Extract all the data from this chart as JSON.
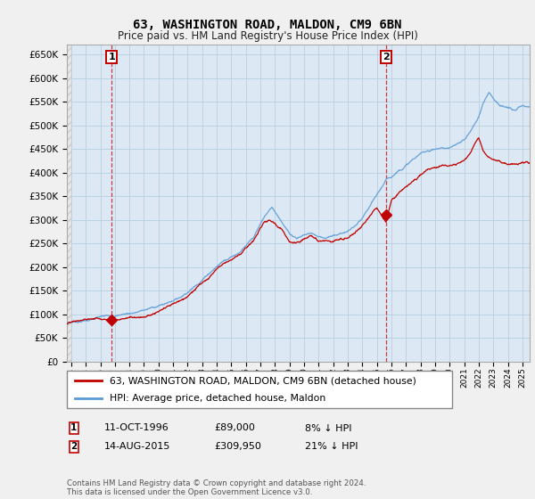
{
  "title": "63, WASHINGTON ROAD, MALDON, CM9 6BN",
  "subtitle": "Price paid vs. HM Land Registry's House Price Index (HPI)",
  "ylim": [
    0,
    670000
  ],
  "yticks": [
    0,
    50000,
    100000,
    150000,
    200000,
    250000,
    300000,
    350000,
    400000,
    450000,
    500000,
    550000,
    600000,
    650000
  ],
  "xlim_start": 1993.7,
  "xlim_end": 2025.5,
  "background_color": "#f0f0f0",
  "plot_bg_color": "#dce9f5",
  "grid_color": "#b8cfe0",
  "hpi_color": "#5b9bd5",
  "price_color": "#c00000",
  "sale1_price": 89000,
  "sale1_hpi_pct": "8% ↓ HPI",
  "sale1_date_label": "11-OCT-1996",
  "sale1_x": 1996.78,
  "sale2_price": 309950,
  "sale2_hpi_pct": "21% ↓ HPI",
  "sale2_date_label": "14-AUG-2015",
  "sale2_x": 2015.62,
  "legend_line1": "63, WASHINGTON ROAD, MALDON, CM9 6BN (detached house)",
  "legend_line2": "HPI: Average price, detached house, Maldon",
  "footer": "Contains HM Land Registry data © Crown copyright and database right 2024.\nThis data is licensed under the Open Government Licence v3.0.",
  "hpi_ctrl_x": [
    1993.7,
    1994.5,
    1995.5,
    1996.0,
    1996.78,
    1997.5,
    1998.5,
    1999.5,
    2000.5,
    2001.5,
    2002.5,
    2003.5,
    2004.5,
    2005.5,
    2006.5,
    2007.3,
    2007.8,
    2008.5,
    2009.0,
    2009.5,
    2010.0,
    2010.5,
    2011.0,
    2011.5,
    2012.0,
    2012.5,
    2013.0,
    2013.5,
    2014.0,
    2014.5,
    2015.0,
    2015.62,
    2016.0,
    2016.5,
    2017.0,
    2017.5,
    2018.0,
    2018.5,
    2019.0,
    2019.5,
    2020.0,
    2020.5,
    2021.0,
    2021.5,
    2022.0,
    2022.3,
    2022.7,
    2023.0,
    2023.5,
    2024.0,
    2024.5,
    2025.0,
    2025.5
  ],
  "hpi_ctrl_y": [
    83000,
    86000,
    92000,
    95000,
    96700,
    102000,
    108000,
    116000,
    126000,
    142000,
    168000,
    200000,
    228000,
    248000,
    275000,
    320000,
    338000,
    310000,
    285000,
    278000,
    285000,
    290000,
    283000,
    282000,
    284000,
    290000,
    295000,
    305000,
    318000,
    340000,
    362000,
    392000,
    400000,
    415000,
    428000,
    440000,
    450000,
    458000,
    462000,
    465000,
    462000,
    468000,
    478000,
    500000,
    528000,
    555000,
    580000,
    570000,
    555000,
    548000,
    542000,
    548000,
    545000
  ],
  "pp_ctrl_x": [
    1993.7,
    1994.5,
    1995.5,
    1996.0,
    1996.78,
    1997.5,
    1998.5,
    1999.5,
    2000.5,
    2001.5,
    2002.5,
    2003.5,
    2004.5,
    2005.5,
    2006.5,
    2007.3,
    2007.8,
    2008.5,
    2009.0,
    2009.5,
    2010.0,
    2010.5,
    2011.0,
    2011.5,
    2012.0,
    2012.5,
    2013.0,
    2013.5,
    2014.0,
    2014.5,
    2015.0,
    2015.62,
    2016.0,
    2016.5,
    2017.0,
    2017.5,
    2018.0,
    2018.5,
    2019.0,
    2019.5,
    2020.0,
    2020.5,
    2021.0,
    2021.5,
    2022.0,
    2022.3,
    2022.7,
    2023.0,
    2023.5,
    2024.0,
    2024.5,
    2025.0,
    2025.5
  ],
  "pp_ctrl_y": [
    80000,
    83000,
    87000,
    90000,
    89000,
    95000,
    101000,
    109000,
    118000,
    132000,
    155000,
    185000,
    218000,
    240000,
    268000,
    308000,
    305000,
    285000,
    262000,
    256000,
    262000,
    265000,
    258000,
    258000,
    260000,
    268000,
    272000,
    282000,
    295000,
    315000,
    338000,
    309950,
    358000,
    372000,
    385000,
    398000,
    408000,
    416000,
    418000,
    420000,
    415000,
    420000,
    430000,
    452000,
    478000,
    450000,
    435000,
    430000,
    420000,
    415000,
    420000,
    425000,
    422000
  ]
}
